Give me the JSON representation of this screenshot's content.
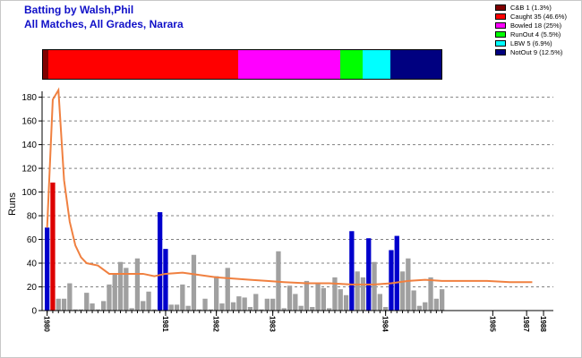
{
  "title_line1": "Batting by Walsh,Phil",
  "title_line2": "All Matches, All Grades, Narara",
  "legend": [
    {
      "label": "C&B 1 (1.3%)",
      "color": "#800000",
      "pct": 1.3
    },
    {
      "label": "Caught 35 (46.6%)",
      "color": "#ff0000",
      "pct": 46.6
    },
    {
      "label": "Bowled 18 (25%)",
      "color": "#ff00ff",
      "pct": 25
    },
    {
      "label": "RunOut 4 (5.5%)",
      "color": "#00ff00",
      "pct": 5.5
    },
    {
      "label": "LBW 5 (6.9%)",
      "color": "#00ffff",
      "pct": 6.9
    },
    {
      "label": "NotOut 9 (12.5%)",
      "color": "#000080",
      "pct": 12.5
    }
  ],
  "colors": {
    "out": "#a0a0a0",
    "notout": "#0000cc",
    "caught": "#dd0000",
    "average_line": "#f08040",
    "grid": "#808080"
  },
  "chart_data": {
    "type": "bar",
    "ylabel": "Runs",
    "ylim": [
      0,
      185
    ],
    "yticks": [
      0,
      20,
      40,
      60,
      80,
      100,
      120,
      140,
      160,
      180
    ],
    "grid": true,
    "year_labels": [
      {
        "label": "1980",
        "index": 0
      },
      {
        "label": "1981",
        "index": 21
      },
      {
        "label": "1982",
        "index": 30
      },
      {
        "label": "1983",
        "index": 40
      },
      {
        "label": "1984",
        "index": 60
      },
      {
        "label": "1985",
        "index": 79
      },
      {
        "label": "1987",
        "index": 85
      },
      {
        "label": "1988",
        "index": 88
      }
    ],
    "innings": [
      {
        "runs": 70,
        "result": "notout"
      },
      {
        "runs": 108,
        "result": "caught"
      },
      {
        "runs": 10,
        "result": "out"
      },
      {
        "runs": 10,
        "result": "out"
      },
      {
        "runs": 23,
        "result": "out"
      },
      {
        "runs": 1,
        "result": "out"
      },
      {
        "runs": 1,
        "result": "out"
      },
      {
        "runs": 15,
        "result": "out"
      },
      {
        "runs": 6,
        "result": "out"
      },
      {
        "runs": 1,
        "result": "out"
      },
      {
        "runs": 8,
        "result": "out"
      },
      {
        "runs": 22,
        "result": "out"
      },
      {
        "runs": 31,
        "result": "out"
      },
      {
        "runs": 41,
        "result": "out"
      },
      {
        "runs": 36,
        "result": "out"
      },
      {
        "runs": 2,
        "result": "out"
      },
      {
        "runs": 44,
        "result": "out"
      },
      {
        "runs": 8,
        "result": "out"
      },
      {
        "runs": 16,
        "result": "out"
      },
      {
        "runs": 1,
        "result": "out"
      },
      {
        "runs": 83,
        "result": "notout"
      },
      {
        "runs": 52,
        "result": "notout"
      },
      {
        "runs": 5,
        "result": "out"
      },
      {
        "runs": 5,
        "result": "out"
      },
      {
        "runs": 22,
        "result": "out"
      },
      {
        "runs": 4,
        "result": "out"
      },
      {
        "runs": 47,
        "result": "out"
      },
      {
        "runs": 1,
        "result": "out"
      },
      {
        "runs": 10,
        "result": "out"
      },
      {
        "runs": 1,
        "result": "out"
      },
      {
        "runs": 29,
        "result": "out"
      },
      {
        "runs": 6,
        "result": "out"
      },
      {
        "runs": 36,
        "result": "out"
      },
      {
        "runs": 7,
        "result": "out"
      },
      {
        "runs": 12,
        "result": "out"
      },
      {
        "runs": 11,
        "result": "out"
      },
      {
        "runs": 3,
        "result": "out"
      },
      {
        "runs": 14,
        "result": "out"
      },
      {
        "runs": 1,
        "result": "out"
      },
      {
        "runs": 10,
        "result": "out"
      },
      {
        "runs": 10,
        "result": "out"
      },
      {
        "runs": 50,
        "result": "out"
      },
      {
        "runs": 2,
        "result": "out"
      },
      {
        "runs": 21,
        "result": "out"
      },
      {
        "runs": 14,
        "result": "out"
      },
      {
        "runs": 4,
        "result": "out"
      },
      {
        "runs": 25,
        "result": "out"
      },
      {
        "runs": 3,
        "result": "out"
      },
      {
        "runs": 23,
        "result": "out"
      },
      {
        "runs": 19,
        "result": "out"
      },
      {
        "runs": 2,
        "result": "out"
      },
      {
        "runs": 28,
        "result": "out"
      },
      {
        "runs": 18,
        "result": "out"
      },
      {
        "runs": 13,
        "result": "out"
      },
      {
        "runs": 67,
        "result": "notout"
      },
      {
        "runs": 33,
        "result": "out"
      },
      {
        "runs": 28,
        "result": "out"
      },
      {
        "runs": 61,
        "result": "notout"
      },
      {
        "runs": 41,
        "result": "out"
      },
      {
        "runs": 14,
        "result": "out"
      },
      {
        "runs": 3,
        "result": "out"
      },
      {
        "runs": 51,
        "result": "notout"
      },
      {
        "runs": 63,
        "result": "notout"
      },
      {
        "runs": 33,
        "result": "out"
      },
      {
        "runs": 44,
        "result": "out"
      },
      {
        "runs": 17,
        "result": "out"
      },
      {
        "runs": 4,
        "result": "out"
      },
      {
        "runs": 7,
        "result": "out"
      },
      {
        "runs": 28,
        "result": "out"
      },
      {
        "runs": 10,
        "result": "out"
      },
      {
        "runs": 18,
        "result": "out"
      }
    ],
    "average_line": [
      {
        "x": 0,
        "y": 70
      },
      {
        "x": 1,
        "y": 178
      },
      {
        "x": 2,
        "y": 186
      },
      {
        "x": 3,
        "y": 110
      },
      {
        "x": 4,
        "y": 75
      },
      {
        "x": 5,
        "y": 55
      },
      {
        "x": 6,
        "y": 45
      },
      {
        "x": 7,
        "y": 40
      },
      {
        "x": 9,
        "y": 38
      },
      {
        "x": 11,
        "y": 31
      },
      {
        "x": 14,
        "y": 31
      },
      {
        "x": 17,
        "y": 31
      },
      {
        "x": 19,
        "y": 29
      },
      {
        "x": 21,
        "y": 31
      },
      {
        "x": 24,
        "y": 32
      },
      {
        "x": 27,
        "y": 30
      },
      {
        "x": 30,
        "y": 28
      },
      {
        "x": 33,
        "y": 27
      },
      {
        "x": 36,
        "y": 26
      },
      {
        "x": 39,
        "y": 25
      },
      {
        "x": 42,
        "y": 24
      },
      {
        "x": 46,
        "y": 23
      },
      {
        "x": 50,
        "y": 23
      },
      {
        "x": 54,
        "y": 22
      },
      {
        "x": 58,
        "y": 22
      },
      {
        "x": 61,
        "y": 23
      },
      {
        "x": 64,
        "y": 25
      },
      {
        "x": 67,
        "y": 26
      },
      {
        "x": 70,
        "y": 25
      },
      {
        "x": 74,
        "y": 25
      },
      {
        "x": 78,
        "y": 25
      },
      {
        "x": 82,
        "y": 24
      },
      {
        "x": 86,
        "y": 24
      }
    ]
  }
}
